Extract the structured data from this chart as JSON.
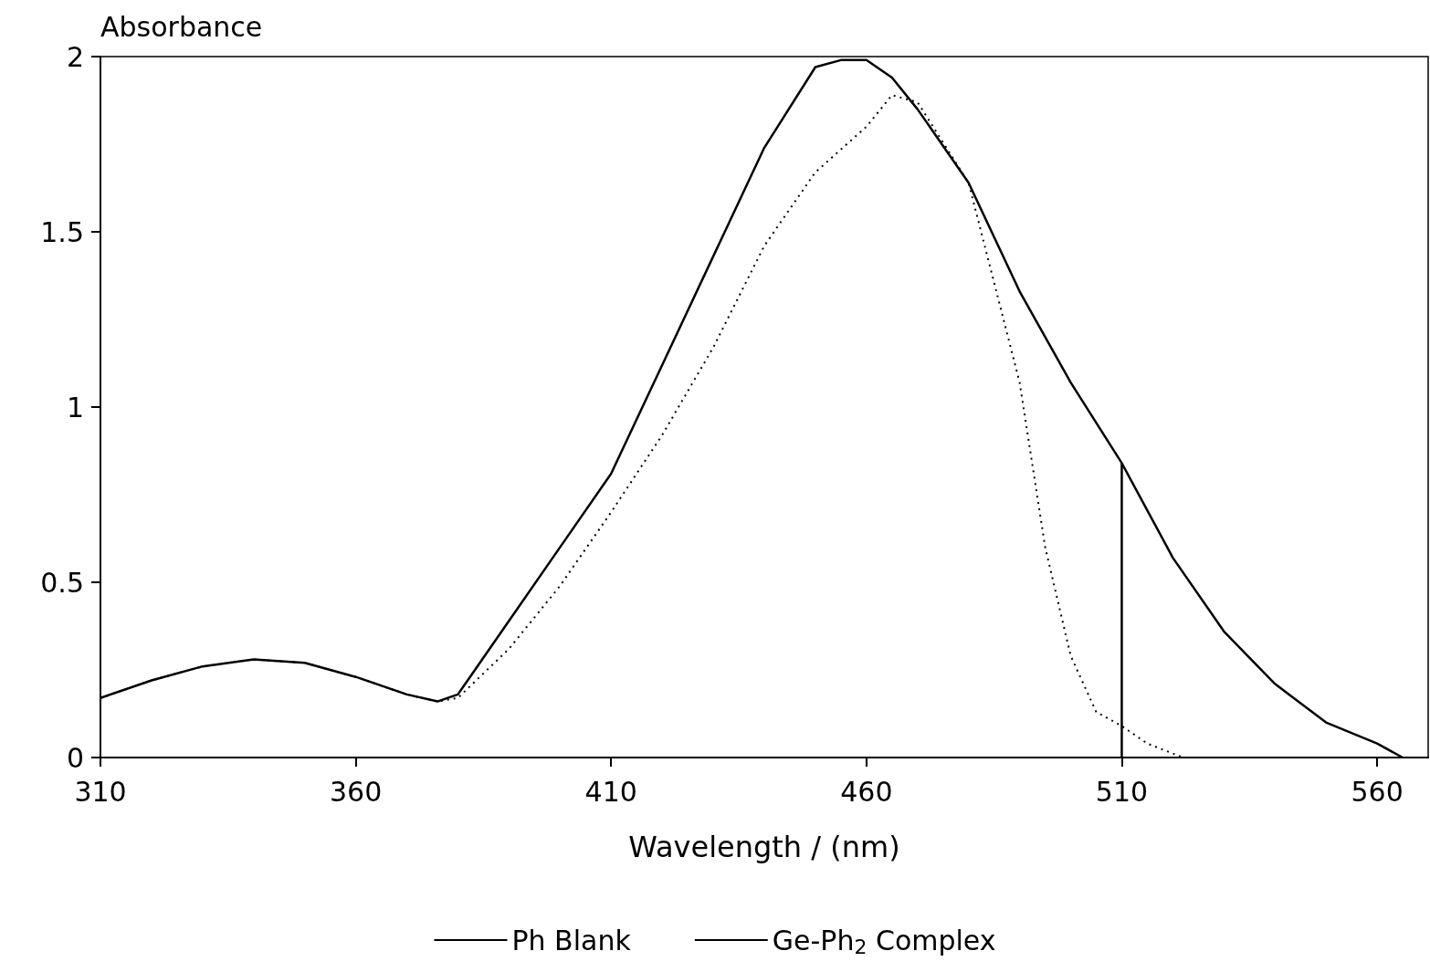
{
  "chart_data": {
    "type": "line",
    "xlabel": "Wavelength / (nm)",
    "ylabel": "Absorbance",
    "xlim": [
      310,
      570
    ],
    "xticks": [
      310,
      360,
      410,
      460,
      510,
      560
    ],
    "ylim": [
      0,
      2
    ],
    "yticks": [
      0,
      0.5,
      1,
      1.5,
      2
    ],
    "grid": false,
    "legend": "bottom",
    "marker": "none",
    "ref_lines": [
      {
        "axis": "x",
        "value": 510,
        "label": null,
        "color": "#000000"
      }
    ],
    "series": [
      {
        "name": "Ph Blank",
        "color": "#000000",
        "line_style": "dotted",
        "x": [
          310,
          320,
          330,
          340,
          350,
          360,
          370,
          376,
          380,
          390,
          400,
          410,
          420,
          430,
          440,
          450,
          460,
          465,
          470,
          480,
          490,
          495,
          500,
          505,
          510,
          515,
          522
        ],
        "values": [
          0.17,
          0.22,
          0.26,
          0.28,
          0.27,
          0.23,
          0.18,
          0.16,
          0.17,
          0.31,
          0.49,
          0.7,
          0.92,
          1.17,
          1.46,
          1.67,
          1.8,
          1.89,
          1.87,
          1.64,
          1.07,
          0.6,
          0.29,
          0.13,
          0.09,
          0.04,
          0
        ]
      },
      {
        "name": "Ge-Ph$_{2}$ Complex",
        "color": "#000000",
        "line_style": "solid",
        "x": [
          310,
          320,
          330,
          340,
          350,
          360,
          370,
          376,
          380,
          390,
          400,
          410,
          420,
          430,
          440,
          450,
          455,
          460,
          465,
          470,
          480,
          490,
          500,
          510,
          520,
          530,
          540,
          550,
          560,
          565
        ],
        "values": [
          0.17,
          0.22,
          0.26,
          0.28,
          0.27,
          0.23,
          0.18,
          0.16,
          0.18,
          0.39,
          0.6,
          0.81,
          1.12,
          1.43,
          1.74,
          1.97,
          1.99,
          1.99,
          1.94,
          1.85,
          1.64,
          1.33,
          1.07,
          0.84,
          0.57,
          0.36,
          0.21,
          0.1,
          0.04,
          0
        ]
      }
    ]
  }
}
